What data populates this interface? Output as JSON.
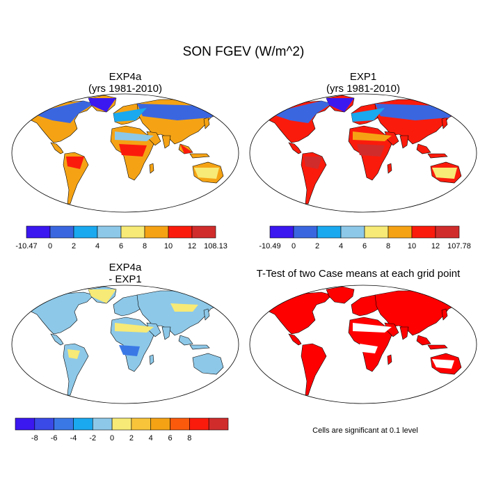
{
  "title": "SON FGEV (W/m^2)",
  "panels": [
    {
      "title_line1": "EXP4a",
      "title_line2": "(yrs 1981-2010)",
      "colorbar": {
        "colors": [
          "#3b17f0",
          "#3a66e0",
          "#1aa8ef",
          "#8dc8e8",
          "#f7ea76",
          "#f5a314",
          "#fb1b0c",
          "#d02c2c"
        ],
        "labels": [
          "-10.47",
          "0",
          "2",
          "4",
          "6",
          "8",
          "10",
          "12",
          "108.13"
        ]
      }
    },
    {
      "title_line1": "EXP1",
      "title_line2": "(yrs 1981-2010)",
      "colorbar": {
        "colors": [
          "#3b17f0",
          "#3a66e0",
          "#1aa8ef",
          "#8dc8e8",
          "#f7ea76",
          "#f5a314",
          "#fb1b0c",
          "#d02c2c"
        ],
        "labels": [
          "-10.49",
          "0",
          "2",
          "4",
          "6",
          "8",
          "10",
          "12",
          "107.78"
        ]
      }
    },
    {
      "title_line1": "EXP4a",
      "title_line2": "- EXP1",
      "colorbar": {
        "colors": [
          "#3b17f0",
          "#3a4ae6",
          "#3a78e6",
          "#1aa8ef",
          "#8dc8e8",
          "#f7ea76",
          "#f8c53a",
          "#f5a314",
          "#fb5a0c",
          "#fb1b0c",
          "#d02c2c"
        ],
        "labels": [
          "-8",
          "-6",
          "-4",
          "-2",
          "0",
          "2",
          "4",
          "6",
          "8"
        ]
      }
    },
    {
      "title_line1": "T-Test of two Case means at each grid point",
      "note": "Cells are significant at 0.1 level",
      "significance_color": "#ff0000"
    }
  ]
}
